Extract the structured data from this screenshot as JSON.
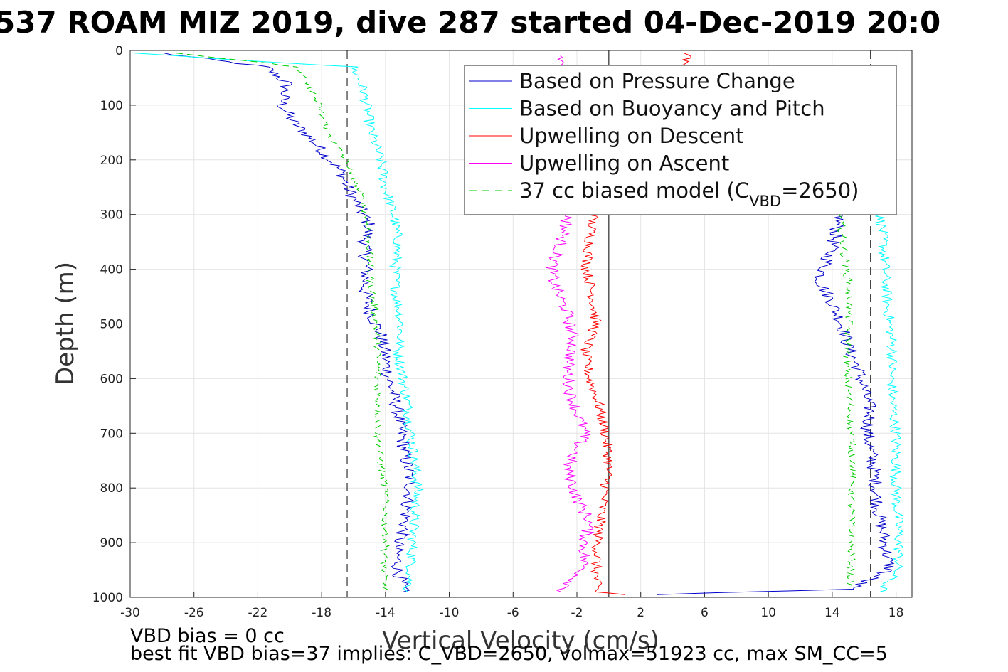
{
  "chart_data": {
    "type": "line",
    "title": "537 ROAM MIZ 2019, dive 287 started 04-Dec-2019 20:0",
    "xlabel": "Vertical Velocity (cm/s)",
    "ylabel": "Depth (m)",
    "xlim": [
      -30,
      19
    ],
    "ylim": [
      0,
      1000
    ],
    "y_reversed": true,
    "grid": true,
    "xticks": [
      "-30",
      "-26",
      "-22",
      "-18",
      "-14",
      "-10",
      "-6",
      "-2",
      "2",
      "6",
      "10",
      "14",
      "18"
    ],
    "yticks": [
      "0",
      "100",
      "200",
      "300",
      "400",
      "500",
      "600",
      "700",
      "800",
      "900",
      "1000"
    ],
    "legend_position": "top-right",
    "reference_lines": {
      "zero_line": 0,
      "dashed_lines": [
        -16.4,
        16.4
      ]
    },
    "series": [
      {
        "name": "Based on Pressure Change",
        "color": "#0000cc",
        "style": "solid",
        "descent": [
          [
            -28,
            5
          ],
          [
            -21.5,
            30
          ],
          [
            -20.2,
            60
          ],
          [
            -20.5,
            100
          ],
          [
            -19.8,
            130
          ],
          [
            -18.7,
            160
          ],
          [
            -17.8,
            190
          ],
          [
            -16.8,
            220
          ],
          [
            -16.4,
            250
          ],
          [
            -15.6,
            290
          ],
          [
            -15,
            320
          ],
          [
            -15.3,
            350
          ],
          [
            -15.2,
            400
          ],
          [
            -15.3,
            440
          ],
          [
            -14.9,
            480
          ],
          [
            -14.3,
            520
          ],
          [
            -14,
            560
          ],
          [
            -13.8,
            600
          ],
          [
            -13.3,
            650
          ],
          [
            -13,
            700
          ],
          [
            -12.7,
            750
          ],
          [
            -12.4,
            790
          ],
          [
            -12.6,
            830
          ],
          [
            -12.8,
            870
          ],
          [
            -13.3,
            910
          ],
          [
            -13.2,
            950
          ],
          [
            -12.9,
            990
          ]
        ],
        "ascent": [
          [
            14.5,
            300
          ],
          [
            14,
            360
          ],
          [
            13.2,
            420
          ],
          [
            14,
            460
          ],
          [
            14.6,
            500
          ],
          [
            15,
            540
          ],
          [
            15.6,
            580
          ],
          [
            16,
            620
          ],
          [
            16.4,
            660
          ],
          [
            16.2,
            700
          ],
          [
            16.6,
            760
          ],
          [
            16.8,
            820
          ],
          [
            17,
            860
          ],
          [
            17.3,
            900
          ],
          [
            17.6,
            950
          ],
          [
            15,
            985
          ],
          [
            3,
            995
          ]
        ]
      },
      {
        "name": "Based on Buoyancy and Pitch",
        "color": "#00ffff",
        "style": "solid",
        "descent": [
          [
            -30,
            5
          ],
          [
            -16,
            30
          ],
          [
            -15.4,
            70
          ],
          [
            -15.2,
            100
          ],
          [
            -14.9,
            150
          ],
          [
            -14.3,
            200
          ],
          [
            -14,
            250
          ],
          [
            -13.5,
            300
          ],
          [
            -13.2,
            350
          ],
          [
            -13.4,
            400
          ],
          [
            -13.3,
            450
          ],
          [
            -13,
            500
          ],
          [
            -13.2,
            550
          ],
          [
            -12.9,
            600
          ],
          [
            -12.6,
            650
          ],
          [
            -12.4,
            700
          ],
          [
            -12.2,
            750
          ],
          [
            -12,
            800
          ],
          [
            -12.2,
            850
          ],
          [
            -12.3,
            900
          ],
          [
            -12.4,
            950
          ],
          [
            -12.6,
            990
          ]
        ],
        "ascent": [
          [
            17,
            300
          ],
          [
            17.2,
            350
          ],
          [
            17.3,
            400
          ],
          [
            17.4,
            450
          ],
          [
            17.6,
            500
          ],
          [
            17.8,
            550
          ],
          [
            17.7,
            600
          ],
          [
            17.8,
            650
          ],
          [
            18,
            700
          ],
          [
            18,
            750
          ],
          [
            18,
            800
          ],
          [
            18.1,
            850
          ],
          [
            18.2,
            900
          ],
          [
            18.1,
            950
          ],
          [
            17,
            990
          ]
        ]
      },
      {
        "name": "Upwelling on Descent",
        "color": "#ff0000",
        "style": "solid",
        "points": [
          [
            5,
            5
          ],
          [
            -1,
            300
          ],
          [
            -1.2,
            350
          ],
          [
            -1.4,
            400
          ],
          [
            -1,
            450
          ],
          [
            -0.8,
            500
          ],
          [
            -1.5,
            550
          ],
          [
            -1.2,
            600
          ],
          [
            -0.6,
            650
          ],
          [
            -0.2,
            700
          ],
          [
            0,
            750
          ],
          [
            -0.2,
            800
          ],
          [
            -0.5,
            850
          ],
          [
            -0.7,
            900
          ],
          [
            -0.8,
            950
          ],
          [
            -0.8,
            990
          ],
          [
            1,
            995
          ]
        ]
      },
      {
        "name": "Upwelling on Ascent",
        "color": "#ff00ff",
        "style": "solid",
        "points": [
          [
            -3,
            10
          ],
          [
            -2.5,
            300
          ],
          [
            -3,
            350
          ],
          [
            -3.6,
            400
          ],
          [
            -3.4,
            430
          ],
          [
            -2.6,
            480
          ],
          [
            -2.2,
            530
          ],
          [
            -2.6,
            580
          ],
          [
            -2.4,
            630
          ],
          [
            -1.5,
            700
          ],
          [
            -2.6,
            760
          ],
          [
            -2,
            820
          ],
          [
            -1.2,
            860
          ],
          [
            -1.5,
            900
          ],
          [
            -1.6,
            950
          ],
          [
            -3,
            990
          ]
        ]
      },
      {
        "name": "37 cc biased model (C_VBD=2650)",
        "color": "#00cc00",
        "style": "dashed",
        "descent": [
          [
            -27,
            5
          ],
          [
            -19.5,
            30
          ],
          [
            -18.7,
            70
          ],
          [
            -18.2,
            100
          ],
          [
            -17.6,
            150
          ],
          [
            -16.5,
            200
          ],
          [
            -15.6,
            260
          ],
          [
            -15.2,
            300
          ],
          [
            -15,
            350
          ],
          [
            -15,
            400
          ],
          [
            -14.8,
            450
          ],
          [
            -14.6,
            500
          ],
          [
            -14.5,
            550
          ],
          [
            -14.5,
            600
          ],
          [
            -14.4,
            650
          ],
          [
            -14.5,
            700
          ],
          [
            -14.3,
            750
          ],
          [
            -14,
            800
          ],
          [
            -14,
            850
          ],
          [
            -14,
            900
          ],
          [
            -14.1,
            950
          ],
          [
            -14,
            990
          ]
        ],
        "ascent": [
          [
            14.5,
            300
          ],
          [
            14.7,
            360
          ],
          [
            15,
            420
          ],
          [
            15.1,
            470
          ],
          [
            15,
            520
          ],
          [
            14.9,
            580
          ],
          [
            15.1,
            640
          ],
          [
            15.2,
            700
          ],
          [
            15.3,
            760
          ],
          [
            15.2,
            820
          ],
          [
            15.2,
            880
          ],
          [
            15.2,
            940
          ],
          [
            15.1,
            980
          ]
        ]
      }
    ]
  },
  "legend": {
    "items": [
      {
        "label": "Based on Pressure Change",
        "color": "#0000cc",
        "dash": false
      },
      {
        "label": "Based on Buoyancy and Pitch",
        "color": "#00ffff",
        "dash": false
      },
      {
        "label": "Upwelling on Descent",
        "color": "#ff0000",
        "dash": false
      },
      {
        "label": "Upwelling on Ascent",
        "color": "#ff00ff",
        "dash": false
      },
      {
        "label": "37 cc biased model (C",
        "sub": "VBD",
        "suffix": "=2650)",
        "color": "#00cc00",
        "dash": true
      }
    ]
  },
  "footer": {
    "line1": "VBD bias = 0 cc",
    "line2": "best fit VBD bias=37 implies: C_VBD=2650, volmax=51923 cc, max SM_CC=5"
  }
}
